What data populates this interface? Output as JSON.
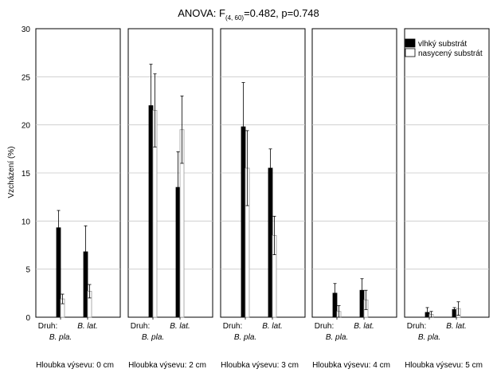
{
  "chart_data": {
    "type": "bar",
    "title_main": "ANOVA: F",
    "title_sub": "(4, 60)",
    "title_rest": "=0.482, p=0.748",
    "ylabel": "Vzcházení (%)",
    "ylim": [
      0,
      30
    ],
    "yticks": [
      "0",
      "5",
      "10",
      "15",
      "20",
      "25",
      "30"
    ],
    "grid": true,
    "legend_placement": "top-right",
    "x_axis_label": "Druh:",
    "categories": [
      "B. pla.",
      "B. lat."
    ],
    "series": [
      {
        "name": "vlhký substrát",
        "color": "#000000"
      },
      {
        "name": "nasycený substrát",
        "color": "#ffffff"
      }
    ],
    "panels": [
      {
        "label": "Hloubka výsevu: 0 cm",
        "values": [
          [
            9.3,
            1.9
          ],
          [
            6.8,
            2.7
          ]
        ],
        "errors_hi": [
          [
            11.1,
            2.4
          ],
          [
            9.5,
            3.4
          ]
        ],
        "errors_lo": [
          [
            7.5,
            1.4
          ],
          [
            4.1,
            2.0
          ]
        ]
      },
      {
        "label": "Hloubka výsevu: 2 cm",
        "values": [
          [
            22.0,
            21.5
          ],
          [
            13.5,
            19.5
          ]
        ],
        "errors_hi": [
          [
            26.3,
            25.3
          ],
          [
            17.2,
            23.0
          ]
        ],
        "errors_lo": [
          [
            17.7,
            17.7
          ],
          [
            9.8,
            16.0
          ]
        ]
      },
      {
        "label": "Hloubka výsevu: 3 cm",
        "values": [
          [
            19.8,
            15.5
          ],
          [
            15.5,
            8.5
          ]
        ],
        "errors_hi": [
          [
            24.4,
            19.4
          ],
          [
            17.5,
            10.5
          ]
        ],
        "errors_lo": [
          [
            15.2,
            11.6
          ],
          [
            13.5,
            6.5
          ]
        ]
      },
      {
        "label": "Hloubka výsevu: 4 cm",
        "values": [
          [
            2.5,
            0.6
          ],
          [
            2.8,
            1.8
          ]
        ],
        "errors_hi": [
          [
            3.5,
            1.2
          ],
          [
            4.0,
            2.8
          ]
        ],
        "errors_lo": [
          [
            1.5,
            0.0
          ],
          [
            1.6,
            0.8
          ]
        ]
      },
      {
        "label": "Hloubka výsevu: 5 cm",
        "values": [
          [
            0.5,
            0.3
          ],
          [
            0.8,
            0.9
          ]
        ],
        "errors_hi": [
          [
            1.0,
            0.6
          ],
          [
            1.0,
            1.6
          ]
        ],
        "errors_lo": [
          [
            0.0,
            0.0
          ],
          [
            0.6,
            0.2
          ]
        ]
      }
    ]
  }
}
